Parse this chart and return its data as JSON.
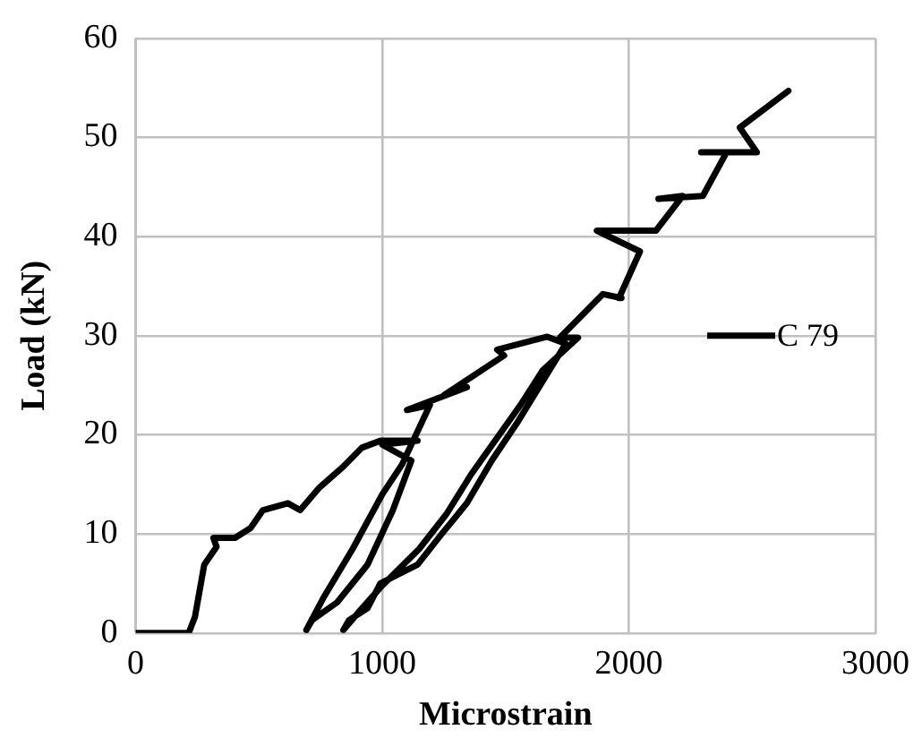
{
  "chart_data": {
    "type": "line",
    "xlabel": "Microstrain",
    "ylabel": "Load (kN)",
    "xlim": [
      0,
      3000
    ],
    "xticks": [
      0,
      1000,
      2000,
      3000
    ],
    "ylim": [
      0,
      60
    ],
    "yticks": [
      0,
      10,
      20,
      30,
      40,
      50,
      60
    ],
    "grid": true,
    "legend": "right",
    "marker": "none",
    "line_style": "solid",
    "series": [
      {
        "name": "C 79",
        "color": "#000000",
        "x": [
          0,
          215,
          240,
          278,
          328,
          315,
          340,
          403,
          466,
          516,
          617,
          667,
          742,
          842,
          917,
          992,
          1143,
          1000,
          1118,
          1043,
          940,
          817,
          715,
          692,
          760,
          880,
          1000,
          1080,
          1193,
          1100,
          1343,
          1250,
          1494,
          1466,
          1669,
          1744,
          1544,
          1444,
          1343,
          1241,
          1143,
          992,
          940,
          865,
          842,
          900,
          1000,
          1150,
          1260,
          1360,
          1460,
          1560,
          1650,
          1794,
          1720,
          1895,
          1970,
          1960,
          2045,
          1870,
          2045,
          2110,
          2218,
          2120,
          2300,
          2396,
          2293,
          2519,
          2450,
          2647
        ],
        "values": [
          0,
          0,
          1.6,
          6.9,
          8.7,
          9.6,
          9.6,
          9.6,
          10.6,
          12.4,
          13.1,
          12.4,
          14.6,
          16.8,
          18.7,
          19.4,
          19.4,
          19.0,
          17.4,
          12.4,
          6.9,
          3.1,
          1.3,
          0.3,
          3.5,
          8.5,
          14,
          17,
          23,
          22.5,
          24.8,
          24,
          28,
          28.6,
          29.9,
          29.2,
          21.1,
          17.4,
          13.1,
          10,
          6.9,
          5,
          2.5,
          1.3,
          0.3,
          2,
          4.8,
          8.5,
          12,
          16,
          19.5,
          23,
          26.5,
          29.8,
          29.8,
          34.2,
          33.8,
          33.8,
          38.5,
          40.6,
          40.6,
          40.6,
          44.1,
          43.8,
          44.1,
          48.5,
          48.5,
          48.5,
          51,
          54.7
        ]
      }
    ]
  }
}
